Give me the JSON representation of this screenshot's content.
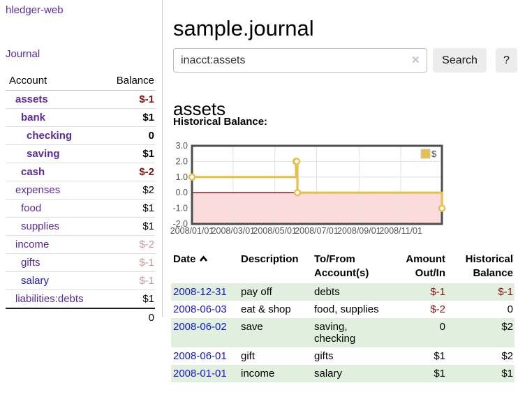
{
  "app": {
    "title": "hledger-web"
  },
  "sidebar": {
    "journal_link": "Journal",
    "accounts_table": {
      "headers": {
        "account": "Account",
        "balance": "Balance"
      },
      "rows": [
        {
          "account": "assets",
          "balance": "$-1",
          "level": 1,
          "bold": true,
          "link_color": "purple",
          "balance_tone": "neg"
        },
        {
          "account": "bank",
          "balance": "$1",
          "level": 2,
          "bold": true,
          "link_color": "purple",
          "balance_tone": ""
        },
        {
          "account": "checking",
          "balance": "0",
          "level": 3,
          "bold": true,
          "link_color": "purple",
          "balance_tone": ""
        },
        {
          "account": "saving",
          "balance": "$1",
          "level": 3,
          "bold": true,
          "link_color": "purple",
          "balance_tone": ""
        },
        {
          "account": "cash",
          "balance": "$-2",
          "level": 2,
          "bold": true,
          "link_color": "purple",
          "balance_tone": "neg"
        },
        {
          "account": "expenses",
          "balance": "$2",
          "level": 1,
          "bold": false,
          "link_color": "purple",
          "balance_tone": ""
        },
        {
          "account": "food",
          "balance": "$1",
          "level": 2,
          "bold": false,
          "link_color": "purple",
          "balance_tone": ""
        },
        {
          "account": "supplies",
          "balance": "$1",
          "level": 2,
          "bold": false,
          "link_color": "purple",
          "balance_tone": ""
        },
        {
          "account": "income",
          "balance": "$-2",
          "level": 1,
          "bold": false,
          "link_color": "purple",
          "balance_tone": "fneg"
        },
        {
          "account": "gifts",
          "balance": "$-1",
          "level": 2,
          "bold": false,
          "link_color": "purple",
          "balance_tone": "fneg"
        },
        {
          "account": "salary",
          "balance": "$-1",
          "level": 2,
          "bold": false,
          "link_color": "blue",
          "balance_tone": "fneg"
        },
        {
          "account": "liabilities:debts",
          "balance": "$1",
          "level": 1,
          "bold": false,
          "link_color": "purple",
          "balance_tone": ""
        }
      ],
      "total": "0"
    }
  },
  "main": {
    "title": "sample.journal",
    "search": {
      "value": "inacct:assets",
      "clear_icon": "✕",
      "search_button": "Search",
      "help_button": "?"
    },
    "account_heading": "assets",
    "chart_title": "Historical Balance:"
  },
  "chart_data": {
    "type": "line",
    "step": true,
    "title": "Historical Balance:",
    "legend": {
      "label": "$",
      "position": "top-right"
    },
    "xlim": [
      "2008-01-01",
      "2008-12-31"
    ],
    "ylim": [
      -2,
      3
    ],
    "x_ticks": [
      {
        "date": "2008-01-01",
        "label": "2008/01/01"
      },
      {
        "date": "2008-03-01",
        "label": "2008/03/01"
      },
      {
        "date": "2008-05-01",
        "label": "2008/05/01"
      },
      {
        "date": "2008-07-01",
        "label": "2008/07/01"
      },
      {
        "date": "2008-09-01",
        "label": "2008/09/01"
      },
      {
        "date": "2008-11-01",
        "label": "2008/11/01"
      }
    ],
    "y_ticks": [
      {
        "value": 3,
        "label": "3.0"
      },
      {
        "value": 2,
        "label": "2.0"
      },
      {
        "value": 1,
        "label": "1.0"
      },
      {
        "value": 0,
        "label": "0.0"
      },
      {
        "value": -1,
        "label": "-1.0"
      },
      {
        "value": -2,
        "label": "-2.0"
      }
    ],
    "series": [
      {
        "name": "$",
        "color": "#e6bf4e",
        "points": [
          {
            "date": "2008-01-01",
            "value": 1
          },
          {
            "date": "2008-06-01",
            "value": 2
          },
          {
            "date": "2008-06-02",
            "value": 2
          },
          {
            "date": "2008-06-03",
            "value": 0
          },
          {
            "date": "2008-12-31",
            "value": -1
          }
        ]
      }
    ],
    "colors": {
      "negative_region_fill": "#fbdbdb",
      "zero_line": "#8a1010",
      "grid": "#e3e3e3",
      "border": "#4d4d4d",
      "tick_text": "#545454"
    }
  },
  "register_table": {
    "headers": {
      "date": "Date",
      "description": "Description",
      "accounts": "To/From Account(s)",
      "amount": "Amount Out/In",
      "balance": "Historical Balance"
    },
    "sort_icon": "chevron-up",
    "rows": [
      {
        "date": "2008-12-31",
        "description": "pay off",
        "accounts": "debts",
        "amount": "$-1",
        "balance": "$-1",
        "amount_tone": "neg",
        "balance_tone": "neg"
      },
      {
        "date": "2008-06-03",
        "description": "eat & shop",
        "accounts": "food, supplies",
        "amount": "$-2",
        "balance": "0",
        "amount_tone": "neg",
        "balance_tone": ""
      },
      {
        "date": "2008-06-02",
        "description": "save",
        "accounts": "saving, checking",
        "amount": "0",
        "balance": "$2",
        "amount_tone": "",
        "balance_tone": ""
      },
      {
        "date": "2008-06-01",
        "description": "gift",
        "accounts": "gifts",
        "amount": "$1",
        "balance": "$2",
        "amount_tone": "",
        "balance_tone": ""
      },
      {
        "date": "2008-01-01",
        "description": "income",
        "accounts": "salary",
        "amount": "$1",
        "balance": "$1",
        "amount_tone": "",
        "balance_tone": ""
      }
    ]
  }
}
